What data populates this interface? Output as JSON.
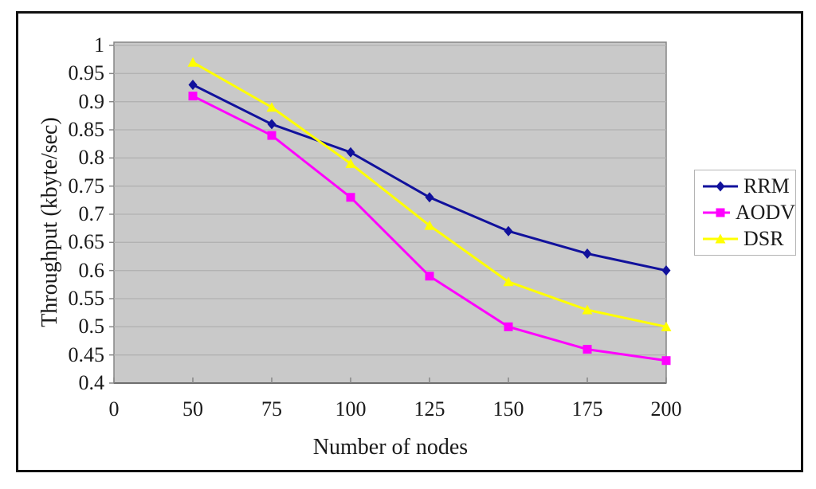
{
  "chart_data": {
    "type": "line",
    "title": "",
    "xlabel": "Number of nodes",
    "ylabel": "Throughput (kbyte/sec)",
    "x_tick_labels": [
      "0",
      "50",
      "75",
      "100",
      "125",
      "150",
      "175",
      "200"
    ],
    "y_tick_labels": [
      "1",
      "0.95",
      "0.9",
      "0.85",
      "0.8",
      "0.75",
      "0.7",
      "0.65",
      "0.6",
      "0.55",
      "0.5",
      "0.45",
      "0.4"
    ],
    "ylim": [
      0.4,
      1.0
    ],
    "y_step": 0.05,
    "grid": "horizontal",
    "legend_position": "right",
    "x": [
      50,
      75,
      100,
      125,
      150,
      175,
      200
    ],
    "series": [
      {
        "name": "RRM",
        "marker": "diamond",
        "color": "#11119c",
        "values": [
          0.93,
          0.86,
          0.81,
          0.73,
          0.67,
          0.63,
          0.6
        ]
      },
      {
        "name": "AODV",
        "marker": "square",
        "color": "#ff00ff",
        "values": [
          0.91,
          0.84,
          0.73,
          0.59,
          0.5,
          0.46,
          0.44
        ]
      },
      {
        "name": "DSR",
        "marker": "triangle",
        "color": "#ffff00",
        "values": [
          0.97,
          0.89,
          0.79,
          0.68,
          0.58,
          0.53,
          0.5
        ]
      }
    ],
    "colors": {
      "plot_bg": "#c9c9c9",
      "gridline": "#b2b2b2",
      "plot_border": "#858585",
      "axis_line": "#6e6e6e",
      "text": "#1a1a1a"
    }
  }
}
